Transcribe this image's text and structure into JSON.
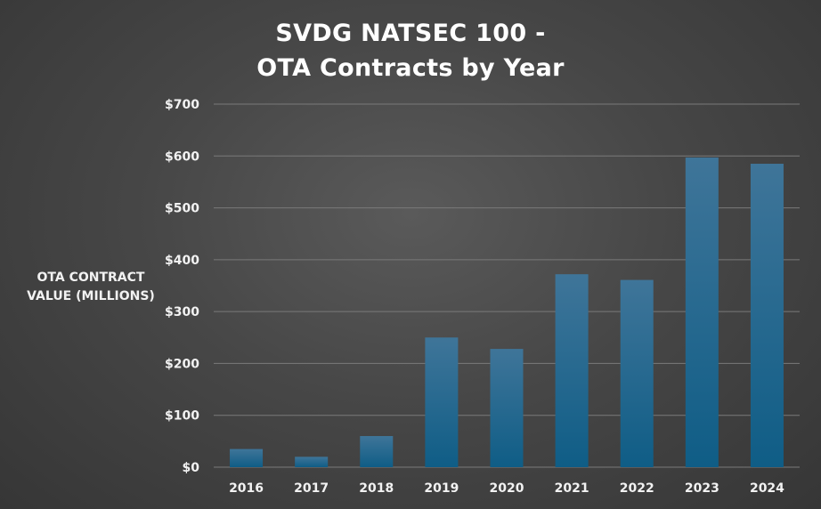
{
  "chart_data": {
    "type": "bar",
    "title_lines": [
      "SVDG NATSEC 100 -",
      "OTA Contracts by Year"
    ],
    "ylabel_lines": [
      "OTA CONTRACT",
      "VALUE (MILLIONS)"
    ],
    "xlabel": "",
    "categories": [
      "2016",
      "2017",
      "2018",
      "2019",
      "2020",
      "2021",
      "2022",
      "2023",
      "2024"
    ],
    "values": [
      35,
      20,
      60,
      250,
      228,
      372,
      361,
      597,
      585
    ],
    "ylim": [
      0,
      700
    ],
    "yticks": [
      0,
      100,
      200,
      300,
      400,
      500,
      600,
      700
    ],
    "ytick_labels": [
      "$0",
      "$100",
      "$200",
      "$300",
      "$400",
      "$500",
      "$600",
      "$700"
    ],
    "grid": true,
    "legend": "none",
    "colors": {
      "bar_top": "#3f7599",
      "bar_bottom": "#0f5d86",
      "grid": "#7a7a7a",
      "text": "#f2f2f2"
    }
  }
}
